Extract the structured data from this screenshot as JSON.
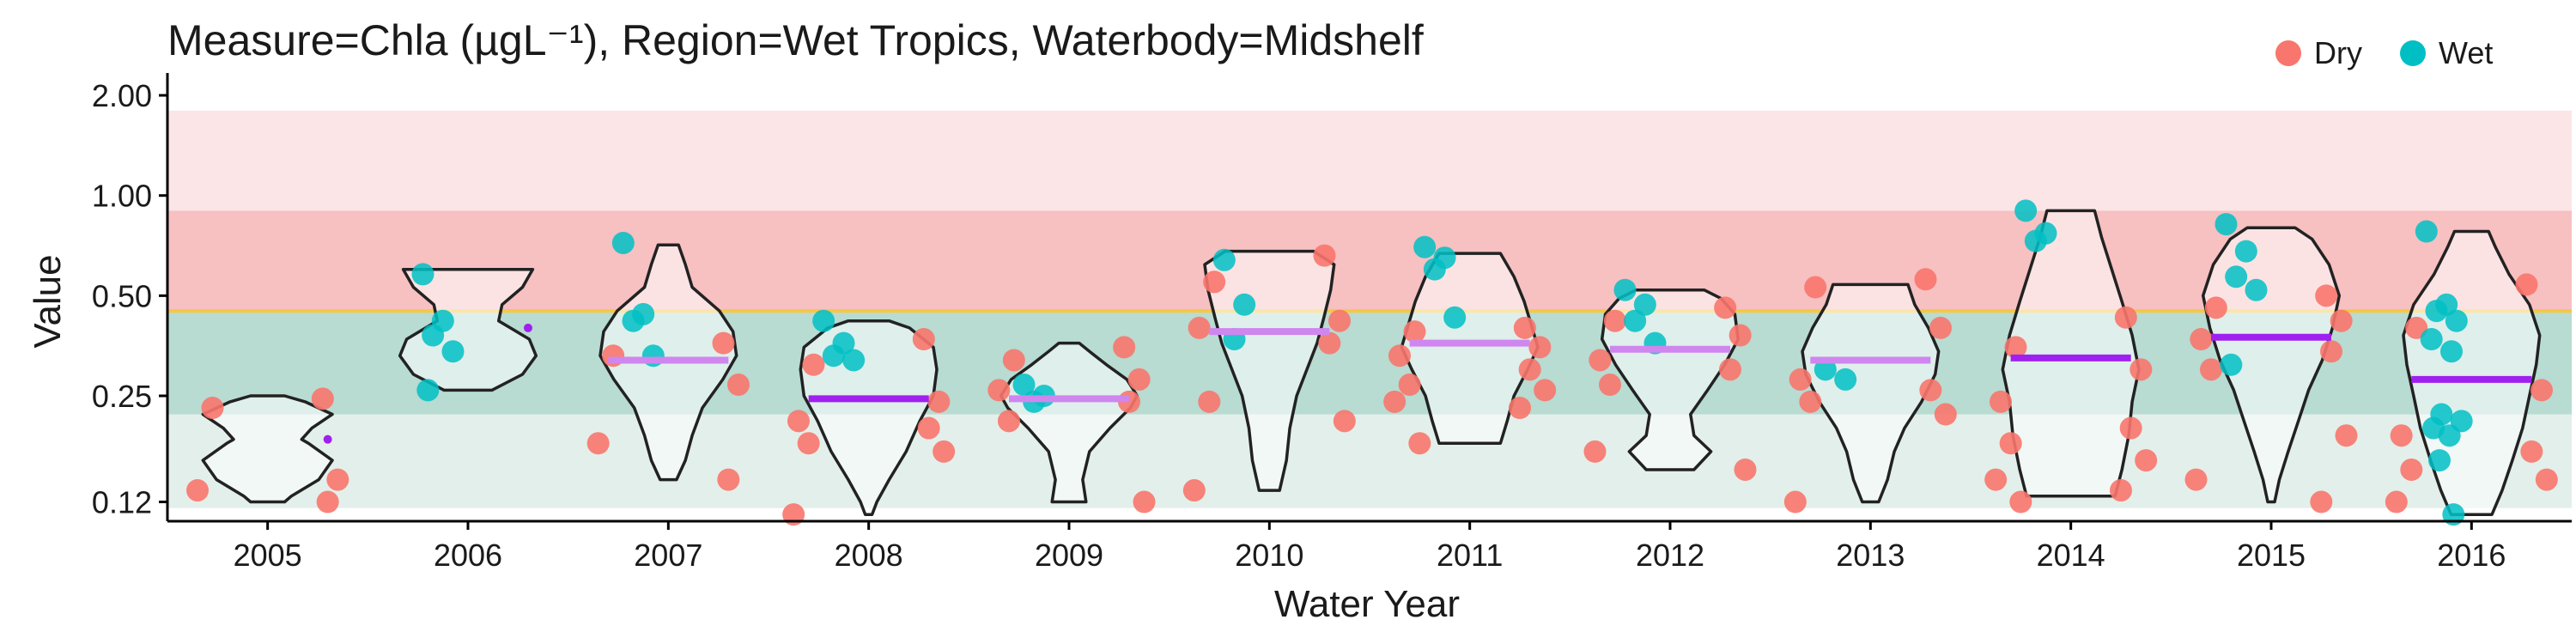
{
  "chart_data": {
    "type": "violin",
    "title": "Measure=Chla (µgL⁻¹), Region=Wet Tropics, Waterbody=Midshelf",
    "xlabel": "Water Year",
    "ylabel": "Value",
    "y_scale": "log2",
    "ylim": [
      0.105,
      2.2
    ],
    "y_ticks": [
      0.12,
      0.25,
      0.5,
      1.0,
      2.0
    ],
    "y_tick_labels": [
      "0.12",
      "0.25",
      "0.50",
      "1.00",
      "2.00"
    ],
    "categories": [
      "2005",
      "2006",
      "2007",
      "2008",
      "2009",
      "2010",
      "2011",
      "2012",
      "2013",
      "2014",
      "2015",
      "2016"
    ],
    "guideline": {
      "value": 0.45,
      "color": "#f5c842"
    },
    "bands": [
      {
        "from": 0.115,
        "to": 0.22,
        "color": "#e3efea"
      },
      {
        "from": 0.22,
        "to": 0.45,
        "color": "#b8dbd2"
      },
      {
        "from": 0.45,
        "to": 0.9,
        "color": "#f7c0c1"
      },
      {
        "from": 0.9,
        "to": 1.8,
        "color": "#fbe5e6"
      }
    ],
    "legend": {
      "position": "top-right",
      "entries": [
        {
          "label": "Dry",
          "color": "#f8766d"
        },
        {
          "label": "Wet",
          "color": "#00bfc4"
        }
      ]
    },
    "colors": {
      "dry": "#f8766d",
      "wet": "#00bfc4",
      "median_dark": "#a020f0",
      "median_light": "#cf86ef"
    },
    "years": [
      {
        "year": "2005",
        "dry": [
          0.245,
          0.23,
          0.14,
          0.13,
          0.12
        ],
        "wet": [],
        "median": 0.185,
        "median_style": "dot",
        "violin": [
          [
            0.12,
            0.25
          ],
          [
            0.125,
            0.35
          ],
          [
            0.14,
            0.75
          ],
          [
            0.16,
            0.95
          ],
          [
            0.18,
            0.6
          ],
          [
            0.185,
            0.5
          ],
          [
            0.2,
            0.65
          ],
          [
            0.22,
            0.95
          ],
          [
            0.24,
            0.55
          ],
          [
            0.25,
            0.25
          ]
        ]
      },
      {
        "year": "2006",
        "dry": [],
        "wet": [
          0.58,
          0.42,
          0.38,
          0.34,
          0.26
        ],
        "median": 0.4,
        "median_style": "dot",
        "violin": [
          [
            0.26,
            0.35
          ],
          [
            0.29,
            0.8
          ],
          [
            0.33,
            1.0
          ],
          [
            0.37,
            0.9
          ],
          [
            0.42,
            0.45
          ],
          [
            0.47,
            0.5
          ],
          [
            0.53,
            0.8
          ],
          [
            0.6,
            0.95
          ]
        ]
      },
      {
        "year": "2007",
        "dry": [
          0.36,
          0.33,
          0.27,
          0.18,
          0.14
        ],
        "wet": [
          0.72,
          0.44,
          0.42,
          0.33
        ],
        "median": 0.32,
        "median_style": "light",
        "violin": [
          [
            0.14,
            0.12
          ],
          [
            0.16,
            0.25
          ],
          [
            0.19,
            0.35
          ],
          [
            0.23,
            0.5
          ],
          [
            0.28,
            0.8
          ],
          [
            0.33,
            1.0
          ],
          [
            0.39,
            0.95
          ],
          [
            0.45,
            0.75
          ],
          [
            0.53,
            0.35
          ],
          [
            0.62,
            0.25
          ],
          [
            0.71,
            0.15
          ]
        ]
      },
      {
        "year": "2008",
        "dry": [
          0.37,
          0.31,
          0.24,
          0.21,
          0.2,
          0.18,
          0.17,
          0.11
        ],
        "wet": [
          0.42,
          0.36,
          0.33,
          0.32
        ],
        "median": 0.245,
        "median_style": "dark",
        "violin": [
          [
            0.11,
            0.05
          ],
          [
            0.12,
            0.12
          ],
          [
            0.14,
            0.3
          ],
          [
            0.17,
            0.55
          ],
          [
            0.21,
            0.75
          ],
          [
            0.25,
            0.95
          ],
          [
            0.3,
            1.0
          ],
          [
            0.35,
            0.95
          ],
          [
            0.4,
            0.6
          ],
          [
            0.42,
            0.3
          ]
        ]
      },
      {
        "year": "2009",
        "dry": [
          0.35,
          0.32,
          0.28,
          0.26,
          0.24,
          0.21,
          0.12
        ],
        "wet": [
          0.27,
          0.25,
          0.24
        ],
        "median": 0.245,
        "median_style": "light",
        "violin": [
          [
            0.12,
            0.25
          ],
          [
            0.14,
            0.2
          ],
          [
            0.17,
            0.3
          ],
          [
            0.2,
            0.6
          ],
          [
            0.23,
            0.9
          ],
          [
            0.25,
            1.0
          ],
          [
            0.28,
            0.85
          ],
          [
            0.31,
            0.55
          ],
          [
            0.34,
            0.3
          ],
          [
            0.36,
            0.15
          ]
        ]
      },
      {
        "year": "2010",
        "dry": [
          0.66,
          0.55,
          0.42,
          0.4,
          0.36,
          0.24,
          0.21,
          0.13
        ],
        "wet": [
          0.64,
          0.47,
          0.37
        ],
        "median": 0.39,
        "median_style": "light",
        "violin": [
          [
            0.13,
            0.15
          ],
          [
            0.16,
            0.25
          ],
          [
            0.2,
            0.3
          ],
          [
            0.25,
            0.4
          ],
          [
            0.3,
            0.55
          ],
          [
            0.36,
            0.7
          ],
          [
            0.43,
            0.8
          ],
          [
            0.52,
            0.9
          ],
          [
            0.62,
            0.95
          ],
          [
            0.68,
            0.65
          ]
        ]
      },
      {
        "year": "2011",
        "dry": [
          0.4,
          0.39,
          0.35,
          0.33,
          0.3,
          0.27,
          0.26,
          0.24,
          0.23,
          0.18
        ],
        "wet": [
          0.7,
          0.65,
          0.6,
          0.43
        ],
        "median": 0.36,
        "median_style": "light",
        "violin": [
          [
            0.18,
            0.45
          ],
          [
            0.21,
            0.55
          ],
          [
            0.25,
            0.65
          ],
          [
            0.3,
            0.85
          ],
          [
            0.35,
            1.0
          ],
          [
            0.41,
            0.9
          ],
          [
            0.48,
            0.8
          ],
          [
            0.57,
            0.65
          ],
          [
            0.67,
            0.45
          ]
        ]
      },
      {
        "year": "2012",
        "dry": [
          0.46,
          0.42,
          0.38,
          0.32,
          0.3,
          0.27,
          0.15,
          0.17
        ],
        "wet": [
          0.52,
          0.47,
          0.42,
          0.36
        ],
        "median": 0.345,
        "median_style": "light",
        "violin": [
          [
            0.15,
            0.35
          ],
          [
            0.17,
            0.6
          ],
          [
            0.19,
            0.35
          ],
          [
            0.22,
            0.3
          ],
          [
            0.26,
            0.55
          ],
          [
            0.31,
            0.8
          ],
          [
            0.37,
            1.0
          ],
          [
            0.44,
            0.95
          ],
          [
            0.49,
            0.75
          ],
          [
            0.52,
            0.5
          ]
        ]
      },
      {
        "year": "2013",
        "dry": [
          0.56,
          0.53,
          0.4,
          0.28,
          0.26,
          0.24,
          0.22,
          0.12
        ],
        "wet": [
          0.3,
          0.28
        ],
        "median": 0.32,
        "median_style": "light",
        "violin": [
          [
            0.12,
            0.12
          ],
          [
            0.14,
            0.25
          ],
          [
            0.17,
            0.35
          ],
          [
            0.2,
            0.5
          ],
          [
            0.24,
            0.75
          ],
          [
            0.29,
            0.95
          ],
          [
            0.34,
            1.0
          ],
          [
            0.4,
            0.85
          ],
          [
            0.47,
            0.65
          ],
          [
            0.54,
            0.55
          ]
        ]
      },
      {
        "year": "2014",
        "dry": [
          0.43,
          0.35,
          0.3,
          0.24,
          0.2,
          0.18,
          0.16,
          0.14,
          0.13,
          0.12
        ],
        "wet": [
          0.9,
          0.77,
          0.73
        ],
        "median": 0.325,
        "median_style": "dark",
        "violin": [
          [
            0.125,
            0.65
          ],
          [
            0.15,
            0.75
          ],
          [
            0.19,
            0.85
          ],
          [
            0.24,
            0.9
          ],
          [
            0.3,
            1.0
          ],
          [
            0.38,
            0.9
          ],
          [
            0.48,
            0.75
          ],
          [
            0.6,
            0.6
          ],
          [
            0.75,
            0.45
          ],
          [
            0.9,
            0.35
          ]
        ]
      },
      {
        "year": "2015",
        "dry": [
          0.5,
          0.46,
          0.42,
          0.37,
          0.34,
          0.3,
          0.19,
          0.14,
          0.12
        ],
        "wet": [
          0.82,
          0.68,
          0.57,
          0.52,
          0.31
        ],
        "median": 0.375,
        "median_style": "dark",
        "violin": [
          [
            0.12,
            0.05
          ],
          [
            0.14,
            0.12
          ],
          [
            0.17,
            0.25
          ],
          [
            0.21,
            0.4
          ],
          [
            0.26,
            0.55
          ],
          [
            0.32,
            0.75
          ],
          [
            0.4,
            0.9
          ],
          [
            0.5,
            1.0
          ],
          [
            0.62,
            0.85
          ],
          [
            0.74,
            0.6
          ],
          [
            0.8,
            0.35
          ]
        ]
      },
      {
        "year": "2016",
        "dry": [
          0.54,
          0.4,
          0.26,
          0.19,
          0.17,
          0.15,
          0.14,
          0.12
        ],
        "wet": [
          0.78,
          0.47,
          0.45,
          0.42,
          0.37,
          0.34,
          0.22,
          0.21,
          0.2,
          0.19,
          0.16,
          0.11
        ],
        "median": 0.28,
        "median_style": "dark",
        "violin": [
          [
            0.11,
            0.3
          ],
          [
            0.13,
            0.45
          ],
          [
            0.16,
            0.6
          ],
          [
            0.2,
            0.75
          ],
          [
            0.25,
            0.85
          ],
          [
            0.31,
            0.95
          ],
          [
            0.38,
            1.0
          ],
          [
            0.47,
            0.85
          ],
          [
            0.58,
            0.55
          ],
          [
            0.7,
            0.35
          ],
          [
            0.78,
            0.25
          ]
        ]
      }
    ]
  }
}
